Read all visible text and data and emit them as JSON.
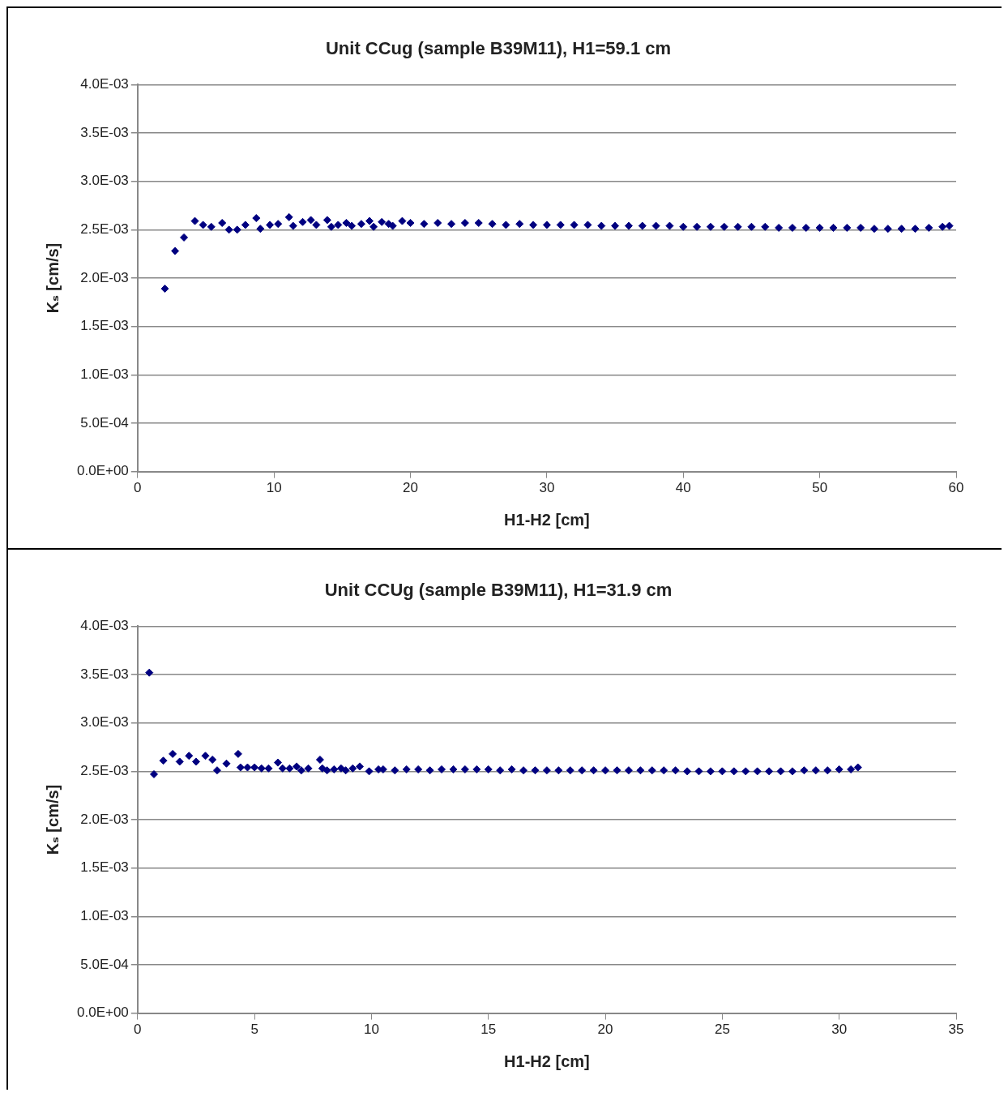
{
  "chart_data": [
    {
      "type": "scatter",
      "title": "Unit CCug (sample B39M11), H1=59.1 cm",
      "xlabel": "H1-H2 [cm]",
      "ylabel": "Kₛ [cm/s]",
      "marker": "diamond",
      "grid": "y",
      "legend": false,
      "xlim": [
        0,
        60
      ],
      "xticks": [
        0,
        10,
        20,
        30,
        40,
        50,
        60
      ],
      "ylim": [
        0,
        0.004
      ],
      "yticks": [
        {
          "value": 0,
          "label": "0.0E+00"
        },
        {
          "value": 0.0005,
          "label": "5.0E-04"
        },
        {
          "value": 0.001,
          "label": "1.0E-03"
        },
        {
          "value": 0.0015,
          "label": "1.5E-03"
        },
        {
          "value": 0.002,
          "label": "2.0E-03"
        },
        {
          "value": 0.0025,
          "label": "2.5E-03"
        },
        {
          "value": 0.003,
          "label": "3.0E-03"
        },
        {
          "value": 0.0035,
          "label": "3.5E-03"
        },
        {
          "value": 0.004,
          "label": "4.0E-03"
        }
      ],
      "series": [
        {
          "color": "#000080",
          "x": [
            2.0,
            2.75,
            3.4,
            4.2,
            4.8,
            5.4,
            6.2,
            6.7,
            7.3,
            7.9,
            8.7,
            9.0,
            9.7,
            10.3,
            11.1,
            11.4,
            12.1,
            12.7,
            13.1,
            13.9,
            14.2,
            14.7,
            15.3,
            15.7,
            16.4,
            17.0,
            17.3,
            17.9,
            18.4,
            18.7,
            19.4,
            20,
            21,
            22,
            23,
            24,
            25,
            26,
            27,
            28,
            29,
            30,
            31,
            32,
            33,
            34,
            35,
            36,
            37,
            38,
            39,
            40,
            41,
            42,
            43,
            44,
            45,
            46,
            47,
            48,
            49,
            50,
            51,
            52,
            53,
            54,
            55,
            56,
            57,
            58,
            59,
            59.5
          ],
          "values": [
            0.00189,
            0.00228,
            0.00242,
            0.00259,
            0.00255,
            0.00253,
            0.00257,
            0.0025,
            0.0025,
            0.00255,
            0.00262,
            0.00251,
            0.00255,
            0.00256,
            0.00263,
            0.00254,
            0.00258,
            0.0026,
            0.00255,
            0.0026,
            0.00253,
            0.00255,
            0.00257,
            0.00254,
            0.00256,
            0.00259,
            0.00253,
            0.00258,
            0.00256,
            0.00254,
            0.00259,
            0.00257,
            0.00256,
            0.00257,
            0.00256,
            0.00257,
            0.00257,
            0.00256,
            0.00255,
            0.00256,
            0.00255,
            0.00255,
            0.00255,
            0.00255,
            0.00255,
            0.00254,
            0.00254,
            0.00254,
            0.00254,
            0.00254,
            0.00254,
            0.00253,
            0.00253,
            0.00253,
            0.00253,
            0.00253,
            0.00253,
            0.00253,
            0.00252,
            0.00252,
            0.00252,
            0.00252,
            0.00252,
            0.00252,
            0.00252,
            0.00251,
            0.00251,
            0.00251,
            0.00251,
            0.00252,
            0.00253,
            0.00254
          ]
        }
      ]
    },
    {
      "type": "scatter",
      "title": "Unit CCUg (sample B39M11), H1=31.9 cm",
      "xlabel": "H1-H2 [cm]",
      "ylabel": "Kₛ [cm/s]",
      "marker": "diamond",
      "grid": "y",
      "legend": false,
      "xlim": [
        0,
        35
      ],
      "xticks": [
        0,
        5,
        10,
        15,
        20,
        25,
        30,
        35
      ],
      "ylim": [
        0,
        0.004
      ],
      "yticks": [
        {
          "value": 0,
          "label": "0.0E+00"
        },
        {
          "value": 0.0005,
          "label": "5.0E-04"
        },
        {
          "value": 0.001,
          "label": "1.0E-03"
        },
        {
          "value": 0.0015,
          "label": "1.5E-03"
        },
        {
          "value": 0.002,
          "label": "2.0E-03"
        },
        {
          "value": 0.0025,
          "label": "2.5E-03"
        },
        {
          "value": 0.003,
          "label": "3.0E-03"
        },
        {
          "value": 0.0035,
          "label": "3.5E-03"
        },
        {
          "value": 0.004,
          "label": "4.0E-03"
        }
      ],
      "series": [
        {
          "color": "#000080",
          "x": [
            0.5,
            0.7,
            1.1,
            1.5,
            1.8,
            2.2,
            2.5,
            2.9,
            3.2,
            3.4,
            3.8,
            4.3,
            4.4,
            4.7,
            5.0,
            5.3,
            5.6,
            6.0,
            6.2,
            6.5,
            6.8,
            7.0,
            7.3,
            7.8,
            7.9,
            8.1,
            8.4,
            8.7,
            8.9,
            9.2,
            9.5,
            9.9,
            10.3,
            10.5,
            11,
            11.5,
            12,
            12.5,
            13,
            13.5,
            14,
            14.5,
            15,
            15.5,
            16,
            16.5,
            17,
            17.5,
            18,
            18.5,
            19,
            19.5,
            20,
            20.5,
            21,
            21.5,
            22,
            22.5,
            23,
            23.5,
            24,
            24.5,
            25,
            25.5,
            26,
            26.5,
            27,
            27.5,
            28,
            28.5,
            29,
            29.5,
            30,
            30.5,
            30.8
          ],
          "values": [
            0.00352,
            0.00247,
            0.00261,
            0.00268,
            0.0026,
            0.00266,
            0.0026,
            0.00266,
            0.00262,
            0.00251,
            0.00258,
            0.00268,
            0.00254,
            0.00254,
            0.00254,
            0.00253,
            0.00253,
            0.00259,
            0.00253,
            0.00253,
            0.00255,
            0.00251,
            0.00253,
            0.00262,
            0.00253,
            0.00251,
            0.00252,
            0.00253,
            0.00251,
            0.00253,
            0.00255,
            0.0025,
            0.00252,
            0.00252,
            0.00251,
            0.00252,
            0.00252,
            0.00251,
            0.00252,
            0.00252,
            0.00252,
            0.00252,
            0.00252,
            0.00251,
            0.00252,
            0.00251,
            0.00251,
            0.00251,
            0.00251,
            0.00251,
            0.00251,
            0.00251,
            0.00251,
            0.00251,
            0.00251,
            0.00251,
            0.00251,
            0.00251,
            0.00251,
            0.0025,
            0.0025,
            0.0025,
            0.0025,
            0.0025,
            0.0025,
            0.0025,
            0.0025,
            0.0025,
            0.0025,
            0.00251,
            0.00251,
            0.00251,
            0.00252,
            0.00252,
            0.00254
          ]
        }
      ]
    }
  ]
}
